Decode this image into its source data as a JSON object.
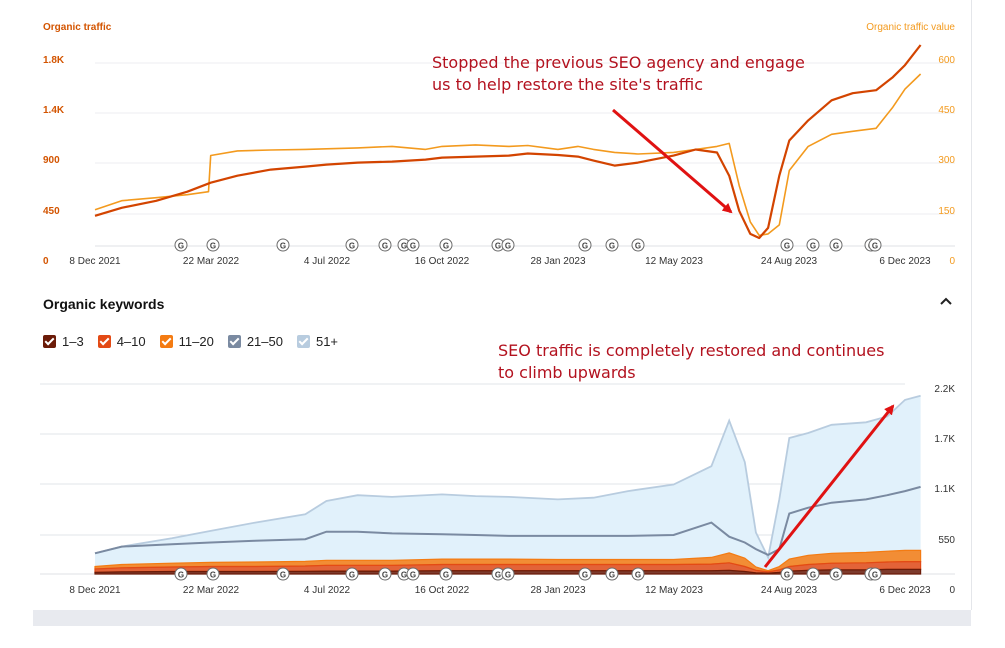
{
  "chart_data": [
    {
      "type": "line",
      "title": "",
      "left_axis_label": "Organic traffic",
      "right_axis_label": "Organic traffic value",
      "x_ticks": [
        "8 Dec 2021",
        "22 Mar 2022",
        "4 Jul 2022",
        "16 Oct 2022",
        "28 Jan 2023",
        "12 May 2023",
        "24 Aug 2023",
        "6 Dec 2023"
      ],
      "ylim": [
        0,
        2000
      ],
      "y_ticks": [
        "450",
        "900",
        "1.4K",
        "1.8K"
      ],
      "y_zero": "0",
      "y2lim": [
        0,
        666
      ],
      "y2_ticks": [
        "150",
        "300",
        "450",
        "600"
      ],
      "y2_zero": "0",
      "grid": true,
      "series": [
        {
          "name": "Organic traffic",
          "axis": "left",
          "color": "#d34400",
          "x": [
            "2021-12-08",
            "2022-01-01",
            "2022-02-01",
            "2022-03-01",
            "2022-03-22",
            "2022-04-15",
            "2022-05-15",
            "2022-06-15",
            "2022-07-04",
            "2022-08-01",
            "2022-09-01",
            "2022-10-01",
            "2022-10-16",
            "2022-11-15",
            "2022-12-15",
            "2023-01-01",
            "2023-01-28",
            "2023-02-15",
            "2023-03-01",
            "2023-03-20",
            "2023-04-10",
            "2023-05-12",
            "2023-06-01",
            "2023-06-20",
            "2023-07-01",
            "2023-07-10",
            "2023-07-20",
            "2023-07-28",
            "2023-08-05",
            "2023-08-15",
            "2023-08-24",
            "2023-09-10",
            "2023-10-01",
            "2023-10-20",
            "2023-11-10",
            "2023-11-25",
            "2023-12-06",
            "2023-12-20"
          ],
          "y": [
            300,
            380,
            450,
            540,
            630,
            700,
            760,
            790,
            810,
            830,
            840,
            860,
            880,
            890,
            900,
            920,
            905,
            890,
            850,
            800,
            830,
            900,
            960,
            930,
            700,
            350,
            120,
            80,
            180,
            700,
            1050,
            1250,
            1450,
            1520,
            1550,
            1680,
            1800,
            2000
          ]
        },
        {
          "name": "Organic traffic value",
          "axis": "right",
          "color": "#f39a1e",
          "x": [
            "2021-12-08",
            "2022-01-01",
            "2022-02-01",
            "2022-03-01",
            "2022-03-20",
            "2022-03-22",
            "2022-04-15",
            "2022-05-15",
            "2022-06-15",
            "2022-07-04",
            "2022-08-01",
            "2022-09-01",
            "2022-10-01",
            "2022-10-16",
            "2022-11-15",
            "2022-12-15",
            "2023-01-01",
            "2023-01-28",
            "2023-02-15",
            "2023-03-01",
            "2023-03-20",
            "2023-04-10",
            "2023-05-12",
            "2023-06-01",
            "2023-06-20",
            "2023-07-01",
            "2023-07-10",
            "2023-07-20",
            "2023-07-28",
            "2023-08-05",
            "2023-08-15",
            "2023-08-24",
            "2023-09-10",
            "2023-10-01",
            "2023-10-20",
            "2023-11-10",
            "2023-11-25",
            "2023-12-06",
            "2023-12-20"
          ],
          "y": [
            120,
            150,
            160,
            170,
            180,
            300,
            315,
            318,
            320,
            322,
            325,
            330,
            320,
            330,
            335,
            330,
            333,
            320,
            330,
            320,
            310,
            305,
            310,
            320,
            330,
            340,
            200,
            80,
            35,
            40,
            70,
            250,
            330,
            370,
            380,
            390,
            460,
            520,
            570
          ]
        }
      ],
      "google_update_markers": "G",
      "annotation": "Stopped the previous SEO agency and engage us to help restore the site's traffic"
    },
    {
      "type": "area",
      "title": "Organic keywords",
      "x_ticks": [
        "8 Dec 2021",
        "22 Mar 2022",
        "4 Jul 2022",
        "16 Oct 2022",
        "28 Jan 2023",
        "12 May 2023",
        "24 Aug 2023",
        "6 Dec 2023"
      ],
      "ylim": [
        0,
        2400
      ],
      "y_ticks": [
        "550",
        "1.1K",
        "1.7K",
        "2.2K"
      ],
      "y_zero": "0",
      "x": [
        "2021-12-08",
        "2022-01-01",
        "2022-02-15",
        "2022-03-22",
        "2022-05-01",
        "2022-06-15",
        "2022-07-04",
        "2022-08-01",
        "2022-09-01",
        "2022-10-16",
        "2022-11-15",
        "2022-12-15",
        "2023-01-28",
        "2023-03-01",
        "2023-04-01",
        "2023-05-12",
        "2023-06-15",
        "2023-07-01",
        "2023-07-15",
        "2023-07-25",
        "2023-08-05",
        "2023-08-15",
        "2023-08-24",
        "2023-09-10",
        "2023-10-01",
        "2023-11-01",
        "2023-11-20",
        "2023-12-06",
        "2023-12-20"
      ],
      "series": [
        {
          "name": "1–3",
          "color": "#6b1b08",
          "values": [
            20,
            25,
            30,
            30,
            30,
            32,
            35,
            35,
            35,
            40,
            40,
            40,
            40,
            40,
            40,
            40,
            40,
            45,
            30,
            15,
            10,
            20,
            35,
            45,
            50,
            50,
            55,
            55,
            55
          ]
        },
        {
          "name": "4–10",
          "color": "#e34a15",
          "values": [
            40,
            50,
            55,
            60,
            60,
            65,
            70,
            70,
            70,
            75,
            75,
            75,
            75,
            75,
            75,
            75,
            80,
            90,
            60,
            30,
            15,
            30,
            55,
            70,
            80,
            85,
            90,
            95,
            95
          ]
        },
        {
          "name": "11–20",
          "color": "#f47b12",
          "values": [
            30,
            40,
            45,
            50,
            55,
            55,
            60,
            60,
            60,
            65,
            65,
            65,
            60,
            60,
            60,
            60,
            80,
            120,
            100,
            40,
            15,
            40,
            90,
            110,
            120,
            125,
            130,
            135,
            135
          ]
        },
        {
          "name": "21–50",
          "color": "#7a8aa1",
          "values": [
            160,
            170,
            180,
            190,
            200,
            220,
            250,
            300,
            290,
            300,
            290,
            280,
            270,
            260,
            280,
            290,
            400,
            300,
            250,
            180,
            150,
            350,
            420,
            460,
            500,
            530,
            560,
            580,
            580
          ]
        },
        {
          "name": "51+",
          "color": "#b8ccdf",
          "values": [
            0,
            0,
            0,
            0,
            0,
            0,
            0,
            0,
            0,
            0,
            0,
            0,
            0,
            0,
            0,
            0,
            0,
            0,
            0,
            0,
            0,
            0,
            0,
            0,
            0,
            0,
            0,
            0,
            0
          ]
        }
      ],
      "totals": [
        250,
        330,
        430,
        520,
        620,
        720,
        880,
        950,
        930,
        960,
        940,
        930,
        900,
        920,
        1000,
        1080,
        1300,
        1850,
        1350,
        500,
        200,
        900,
        1640,
        1700,
        1800,
        1830,
        1900,
        2100,
        2150
      ],
      "mid_line": [
        250,
        330,
        360,
        380,
        400,
        420,
        510,
        510,
        490,
        480,
        470,
        460,
        460,
        460,
        460,
        470,
        620,
        450,
        380,
        300,
        230,
        300,
        730,
        800,
        860,
        900,
        950,
        1000,
        1050
      ],
      "google_update_markers": "G",
      "annotation": "SEO traffic is completely restored and continues to climb upwards"
    }
  ],
  "keywords_section": {
    "title": "Organic keywords"
  },
  "legend": [
    {
      "label": "1–3",
      "color": "#6b1b08"
    },
    {
      "label": "4–10",
      "color": "#e34a15"
    },
    {
      "label": "11–20",
      "color": "#f47b12"
    },
    {
      "label": "21–50",
      "color": "#7a8aa1"
    },
    {
      "label": "51+",
      "color": "#b8ccdf"
    }
  ],
  "annotations": {
    "top_line1": "Stopped the previous SEO agency and engage",
    "top_line2": "us to help restore the site's traffic",
    "bottom_line1": "SEO traffic is completely restored and continues",
    "bottom_line2": "to climb upwards"
  },
  "colors": {
    "traffic": "#d34400",
    "value": "#f39a1e",
    "arrow": "#e01212",
    "annotation_text": "#b3121f",
    "axis_orange": "#d35400",
    "axis_light": "#f39a1e"
  },
  "icons": {
    "collapse": "chevron-up-icon"
  }
}
